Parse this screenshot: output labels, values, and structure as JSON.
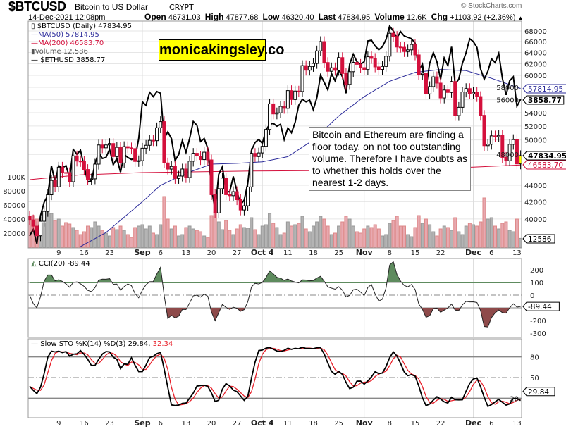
{
  "header": {
    "symbol": "$BTCUSD",
    "name": "Bitcoin to US Dollar",
    "exchange": "CRYPT",
    "timestamp": "14-Dec-2021 12:08pm",
    "copyright": "© StockCharts.com",
    "open_label": "Open",
    "open": "46731.03",
    "high_label": "High",
    "high": "47877.68",
    "low_label": "Low",
    "low": "46320.40",
    "last_label": "Last",
    "last": "47834.95",
    "volume_label": "Volume",
    "volume": "12.6K",
    "chg_label": "Chg",
    "chg": "+1103.92 (+2.36%)",
    "chg_arrow": "▲"
  },
  "legend": {
    "price": "$BTCUSD (Daily) 47834.95",
    "ma50": "MA(50) 57814.95",
    "ma200": "MA(200) 46583.70",
    "volume": "Volume 12,586",
    "eth": "$ETHUSD 3858.77"
  },
  "watermark": "monicakingsley.co",
  "annotation": "Bitcoin and Ethereum are finding a floor today, on not too outstanding volume. Therefore I have doubts as to whether this holds over the nearest 1-2 days.",
  "colors": {
    "up": "#000000",
    "down": "#d4103c",
    "ma50": "#2b2b9a",
    "ma200": "#d4103c",
    "eth": "#000000",
    "vol_up": "#b4b4b4",
    "vol_down": "#e8a9b0",
    "cci_pos": "#5e8b5e",
    "cci_neg": "#8e4a4a",
    "sto_d": "#e8202a",
    "highlight": "#ffff00"
  },
  "chart_data": {
    "type": "candlestick",
    "x_start": "2021-08-01",
    "price_scale": "log",
    "price_ticks": [
      "68000",
      "66000",
      "64000",
      "62000",
      "60000",
      "58000",
      "56000",
      "54000",
      "52000",
      "50000",
      "48000",
      "44000",
      "42000",
      "40000"
    ],
    "volume_ticks": [
      "100K",
      "80000",
      "60000",
      "40000",
      "20000"
    ],
    "x_ticks": [
      {
        "label": "9",
        "date": "2021-08-09"
      },
      {
        "label": "16",
        "date": "2021-08-16"
      },
      {
        "label": "23",
        "date": "2021-08-23"
      },
      {
        "label": "Sep",
        "date": "2021-09-01",
        "bold": true
      },
      {
        "label": "6",
        "date": "2021-09-06"
      },
      {
        "label": "13",
        "date": "2021-09-13"
      },
      {
        "label": "20",
        "date": "2021-09-20"
      },
      {
        "label": "27",
        "date": "2021-09-27"
      },
      {
        "label": "Oct 4",
        "date": "2021-10-04",
        "bold": true
      },
      {
        "label": "11",
        "date": "2021-10-11"
      },
      {
        "label": "18",
        "date": "2021-10-18"
      },
      {
        "label": "25",
        "date": "2021-10-25"
      },
      {
        "label": "Nov",
        "date": "2021-11-01",
        "bold": true
      },
      {
        "label": "8",
        "date": "2021-11-08"
      },
      {
        "label": "15",
        "date": "2021-11-15"
      },
      {
        "label": "22",
        "date": "2021-11-22"
      },
      {
        "label": "Dec",
        "date": "2021-12-01",
        "bold": true
      },
      {
        "label": "6",
        "date": "2021-12-06"
      },
      {
        "label": "13",
        "date": "2021-12-13"
      }
    ],
    "btc_close": [
      39900,
      39200,
      38150,
      39750,
      40870,
      42830,
      44600,
      43800,
      46300,
      45600,
      45590,
      44430,
      47800,
      47100,
      47050,
      46000,
      44700,
      44800,
      46700,
      49300,
      48900,
      49300,
      49500,
      47700,
      48970,
      46850,
      49070,
      48900,
      48800,
      47050,
      47150,
      48850,
      49250,
      49950,
      49900,
      51750,
      52660,
      46860,
      46050,
      46400,
      44850,
      45150,
      46060,
      44960,
      47090,
      48150,
      47780,
      47300,
      48300,
      47260,
      42840,
      40690,
      43570,
      44900,
      42840,
      42720,
      43210,
      42240,
      41030,
      41520,
      43790,
      48140,
      47710,
      48200,
      49110,
      51510,
      55360,
      53810,
      53970,
      54970,
      54660,
      57470,
      56040,
      57400,
      57320,
      61670,
      60880,
      61530,
      62050,
      64280,
      66000,
      62210,
      60690,
      61290,
      60860,
      63080,
      60320,
      58480,
      60620,
      62230,
      61890,
      61320,
      61000,
      63230,
      62940,
      61450,
      61010,
      61530,
      63330,
      67570,
      66970,
      64990,
      64950,
      64160,
      64470,
      65470,
      63560,
      60160,
      60370,
      56940,
      58120,
      59750,
      58700,
      56290,
      57570,
      57170,
      58960,
      53570,
      54820,
      57250,
      57800,
      56950,
      57180,
      56510,
      53600,
      49200,
      49400,
      50580,
      50470,
      50640,
      47600,
      47140,
      49390,
      50050,
      46731.03,
      47834.95
    ],
    "eth_close": [
      2560,
      2610,
      2500,
      2720,
      2830,
      2890,
      3160,
      3010,
      3160,
      3140,
      3160,
      3050,
      3320,
      3270,
      3310,
      3150,
      3010,
      3020,
      3180,
      3290,
      3230,
      3240,
      3320,
      3170,
      3230,
      3100,
      3270,
      3240,
      3220,
      3230,
      3430,
      3830,
      3790,
      3940,
      3890,
      3950,
      3930,
      3430,
      3500,
      3430,
      3210,
      3270,
      3410,
      3290,
      3430,
      3610,
      3570,
      3400,
      3430,
      3330,
      2960,
      2760,
      3080,
      3150,
      2930,
      2920,
      3060,
      2930,
      2810,
      2850,
      3000,
      3310,
      3390,
      3420,
      3380,
      3520,
      3580,
      3590,
      3560,
      3580,
      3420,
      3540,
      3490,
      3600,
      3790,
      3860,
      3830,
      3850,
      3740,
      3880,
      4150,
      4060,
      3970,
      4170,
      4080,
      4220,
      4130,
      3930,
      4290,
      4420,
      4320,
      4290,
      4320,
      4600,
      4610,
      4530,
      4480,
      4520,
      4620,
      4810,
      4740,
      4640,
      4730,
      4670,
      4650,
      4630,
      4570,
      4210,
      4290,
      3990,
      4300,
      4440,
      4320,
      4100,
      4370,
      4270,
      4520,
      4040,
      4100,
      4300,
      4440,
      4630,
      4590,
      4510,
      4230,
      4100,
      4200,
      4360,
      4310,
      4430,
      4110,
      3910,
      4080,
      4130,
      3780,
      3858.77
    ],
    "volume": [
      38000,
      45000,
      40000,
      42000,
      35000,
      50000,
      48000,
      38000,
      40000,
      30000,
      35000,
      33000,
      28000,
      24000,
      18000,
      22000,
      30000,
      28000,
      36000,
      30000,
      24000,
      20000,
      16000,
      28000,
      25000,
      30000,
      24000,
      18000,
      14000,
      28000,
      30000,
      32000,
      26000,
      30000,
      20000,
      18000,
      32000,
      72000,
      40000,
      26000,
      30000,
      16000,
      18000,
      28000,
      30000,
      26000,
      24000,
      22000,
      16000,
      14000,
      45000,
      50000,
      36000,
      25000,
      38000,
      24000,
      18000,
      26000,
      32000,
      28000,
      27000,
      42000,
      25000,
      18000,
      30000,
      32000,
      48000,
      34000,
      28000,
      18000,
      20000,
      36000,
      30000,
      32000,
      34000,
      44000,
      26000,
      22000,
      30000,
      36000,
      44000,
      40000,
      30000,
      18000,
      20000,
      30000,
      36000,
      44000,
      40000,
      30000,
      22000,
      20000,
      26000,
      30000,
      28000,
      32000,
      26000,
      16000,
      18000,
      34000,
      38000,
      44000,
      30000,
      30000,
      18000,
      15000,
      28000,
      45000,
      34000,
      40000,
      32000,
      22000,
      16000,
      26000,
      30000,
      28000,
      24000,
      42000,
      22000,
      18000,
      30000,
      34000,
      32000,
      30000,
      36000,
      70000,
      40000,
      42000,
      30000,
      26000,
      34000,
      36000,
      24000,
      22000,
      40000,
      12586
    ],
    "ma50_points": [
      {
        "date": "2021-08-15",
        "value": 37000
      },
      {
        "date": "2021-08-22",
        "value": 38500
      },
      {
        "date": "2021-09-01",
        "value": 42000
      },
      {
        "date": "2021-09-06",
        "value": 44000
      },
      {
        "date": "2021-09-13",
        "value": 45500
      },
      {
        "date": "2021-09-20",
        "value": 46700
      },
      {
        "date": "2021-09-27",
        "value": 46800
      },
      {
        "date": "2021-10-04",
        "value": 47000
      },
      {
        "date": "2021-10-11",
        "value": 47700
      },
      {
        "date": "2021-10-18",
        "value": 50000
      },
      {
        "date": "2021-10-25",
        "value": 53500
      },
      {
        "date": "2021-11-01",
        "value": 56500
      },
      {
        "date": "2021-11-08",
        "value": 59000
      },
      {
        "date": "2021-11-15",
        "value": 60500
      },
      {
        "date": "2021-11-22",
        "value": 61000
      },
      {
        "date": "2021-11-29",
        "value": 60800
      },
      {
        "date": "2021-12-06",
        "value": 59500
      },
      {
        "date": "2021-12-14",
        "value": 57814.95
      }
    ],
    "ma200_points": [
      {
        "date": "2021-08-01",
        "value": 44700
      },
      {
        "date": "2021-08-15",
        "value": 45300
      },
      {
        "date": "2021-09-01",
        "value": 45600
      },
      {
        "date": "2021-10-01",
        "value": 45800
      },
      {
        "date": "2021-11-01",
        "value": 45900
      },
      {
        "date": "2021-12-01",
        "value": 46300
      },
      {
        "date": "2021-12-14",
        "value": 46583.7
      }
    ],
    "last_labels": {
      "ma50": "57814.95",
      "eth": "3858.77",
      "price": "47834.95",
      "ma200": "46583.70",
      "volume": "12586"
    },
    "cci": {
      "title": "CCI(20) -89.44",
      "last": "-89.44",
      "ticks": [
        "200",
        "100",
        "0",
        "-200",
        "-300"
      ],
      "levels": [
        100,
        0,
        -100
      ]
    },
    "sto": {
      "title_k": "Slow STO %K(14) %D(3) 29.84,",
      "title_d": "32.34",
      "last": "29.84",
      "ticks": [
        "80",
        "50",
        "20"
      ],
      "levels": [
        80,
        50,
        20
      ]
    }
  }
}
